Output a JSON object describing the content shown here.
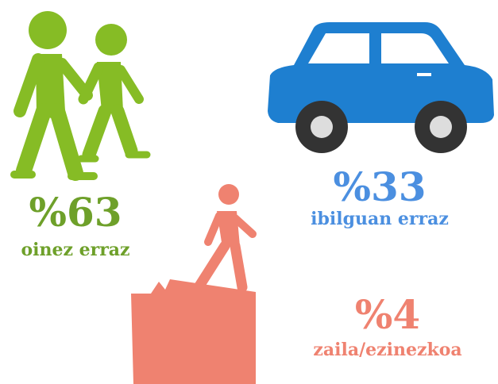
{
  "items": [
    {
      "value": "%63",
      "label": "oinez erraz"
    },
    {
      "value": "%33",
      "label": "ibilguan erraz"
    },
    {
      "value": "%4",
      "label": "zaila/ezinezkoa"
    }
  ]
}
